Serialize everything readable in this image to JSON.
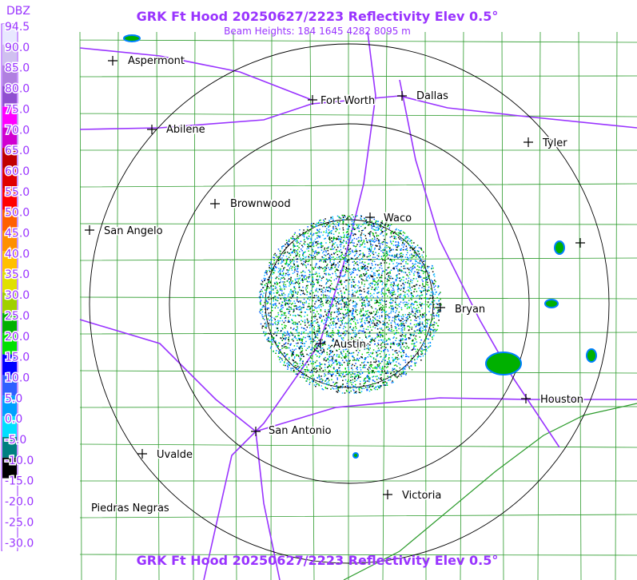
{
  "header": {
    "title": "GRK Ft Hood 20250627/2223 Reflectivity Elev 0.5°",
    "subtitle": "Beam Heights: 184 1645 4282 8095 m"
  },
  "legend": {
    "title": "DBZ",
    "labels": [
      "94.5",
      "90.0",
      "85.0",
      "80.0",
      "75.0",
      "70.0",
      "65.0",
      "60.0",
      "55.0",
      "50.0",
      "45.0",
      "40.0",
      "35.0",
      "30.0",
      "25.0",
      "20.0",
      "15.0",
      "10.0",
      "5.0",
      "0.0",
      "-5.0",
      "-10.0",
      "-15.0",
      "-20.0",
      "-25.0",
      "-30.0"
    ]
  },
  "cities": [
    "Aspermont",
    "Fort Worth",
    "Dallas",
    "Abilene",
    "Tyler",
    "Brownwood",
    "Waco",
    "San Angelo",
    "Bryan",
    "Austin",
    "Houston",
    "San Antonio",
    "Uvalde",
    "Victoria",
    "Piedras Negras"
  ],
  "footer": {
    "title": "GRK Ft Hood 20250627/2223 Reflectivity Elev 0.5°"
  }
}
